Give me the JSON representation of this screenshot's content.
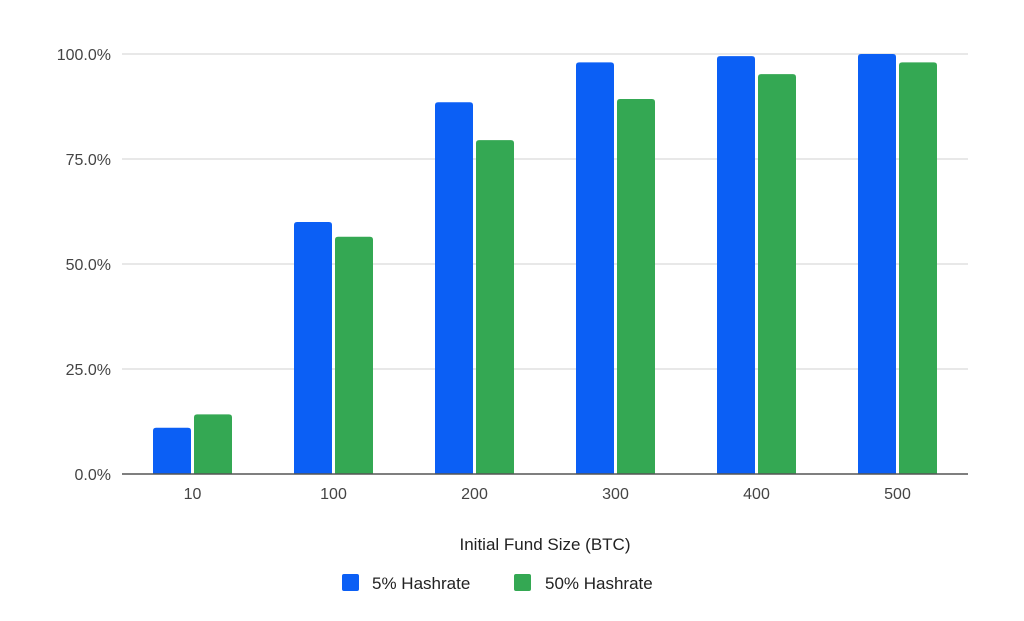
{
  "chart_data": {
    "type": "bar",
    "categories": [
      "10",
      "100",
      "200",
      "300",
      "400",
      "500"
    ],
    "series": [
      {
        "name": "5% Hashrate",
        "color": "#0B5FF5",
        "values": [
          11.0,
          60.0,
          88.5,
          98.0,
          99.5,
          100.0
        ]
      },
      {
        "name": "50% Hashrate",
        "color": "#34A853",
        "values": [
          14.2,
          56.5,
          79.5,
          89.3,
          95.2,
          98.0
        ]
      }
    ],
    "xlabel": "Initial Fund Size (BTC)",
    "ylabel": "",
    "ylim": [
      0,
      100
    ],
    "yticks": [
      "0.0%",
      "25.0%",
      "50.0%",
      "75.0%",
      "100.0%"
    ],
    "grid": true,
    "legend_position": "bottom"
  }
}
